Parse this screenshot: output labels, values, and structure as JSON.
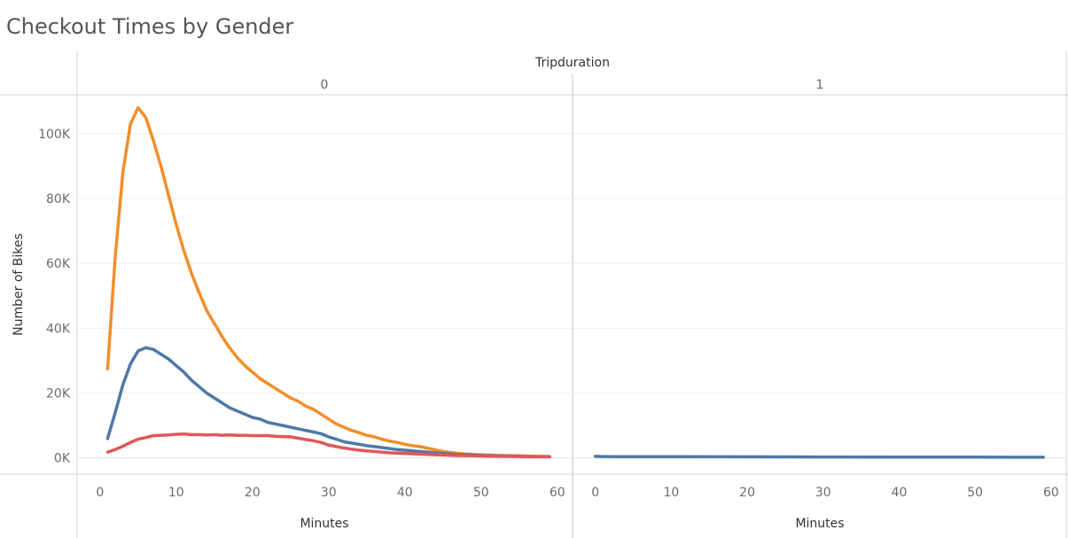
{
  "chart_data": {
    "type": "line",
    "title": "Checkout Times by Gender",
    "column_header": "Tripduration",
    "panes": [
      "0",
      "1"
    ],
    "xlabel": "Minutes",
    "ylabel": "Number of Bikes",
    "x_ticks": [
      "0",
      "10",
      "20",
      "30",
      "40",
      "50",
      "60"
    ],
    "y_ticks": [
      "0K",
      "20K",
      "40K",
      "60K",
      "80K",
      "100K"
    ],
    "xlim": [
      -3,
      62
    ],
    "ylim": [
      -5000,
      112000
    ],
    "grid": true,
    "series": [
      {
        "color": "#f28e2b",
        "pane0": [
          [
            1,
            27500
          ],
          [
            2,
            62000
          ],
          [
            3,
            88000
          ],
          [
            4,
            103000
          ],
          [
            5,
            108000
          ],
          [
            6,
            105000
          ],
          [
            7,
            98000
          ],
          [
            8,
            90000
          ],
          [
            9,
            81000
          ],
          [
            10,
            72000
          ],
          [
            11,
            64000
          ],
          [
            12,
            57000
          ],
          [
            13,
            51000
          ],
          [
            14,
            45500
          ],
          [
            15,
            41500
          ],
          [
            16,
            37500
          ],
          [
            17,
            34000
          ],
          [
            18,
            31000
          ],
          [
            19,
            28500
          ],
          [
            20,
            26500
          ],
          [
            21,
            24500
          ],
          [
            22,
            23000
          ],
          [
            23,
            21500
          ],
          [
            24,
            20000
          ],
          [
            25,
            18500
          ],
          [
            26,
            17500
          ],
          [
            27,
            16000
          ],
          [
            28,
            15000
          ],
          [
            29,
            13500
          ],
          [
            30,
            12000
          ],
          [
            31,
            10500
          ],
          [
            32,
            9500
          ],
          [
            33,
            8500
          ],
          [
            34,
            7800
          ],
          [
            35,
            7000
          ],
          [
            36,
            6500
          ],
          [
            37,
            5800
          ],
          [
            38,
            5200
          ],
          [
            39,
            4800
          ],
          [
            40,
            4200
          ],
          [
            41,
            3800
          ],
          [
            42,
            3500
          ],
          [
            43,
            3000
          ],
          [
            44,
            2500
          ],
          [
            45,
            2000
          ],
          [
            46,
            1700
          ],
          [
            47,
            1400
          ],
          [
            48,
            1200
          ],
          [
            49,
            1100
          ],
          [
            50,
            1000
          ],
          [
            51,
            900
          ],
          [
            52,
            800
          ],
          [
            53,
            750
          ],
          [
            54,
            700
          ],
          [
            55,
            650
          ],
          [
            56,
            600
          ],
          [
            57,
            550
          ],
          [
            58,
            500
          ],
          [
            59,
            450
          ]
        ],
        "pane1": []
      },
      {
        "color": "#4e79a7",
        "pane0": [
          [
            1,
            6000
          ],
          [
            2,
            14000
          ],
          [
            3,
            22500
          ],
          [
            4,
            29000
          ],
          [
            5,
            33000
          ],
          [
            6,
            34000
          ],
          [
            7,
            33500
          ],
          [
            8,
            32000
          ],
          [
            9,
            30500
          ],
          [
            10,
            28500
          ],
          [
            11,
            26500
          ],
          [
            12,
            24000
          ],
          [
            13,
            22000
          ],
          [
            14,
            20000
          ],
          [
            15,
            18500
          ],
          [
            16,
            17000
          ],
          [
            17,
            15500
          ],
          [
            18,
            14500
          ],
          [
            19,
            13500
          ],
          [
            20,
            12500
          ],
          [
            21,
            12000
          ],
          [
            22,
            11000
          ],
          [
            23,
            10500
          ],
          [
            24,
            10000
          ],
          [
            25,
            9500
          ],
          [
            26,
            9000
          ],
          [
            27,
            8500
          ],
          [
            28,
            8000
          ],
          [
            29,
            7500
          ],
          [
            30,
            6500
          ],
          [
            31,
            5800
          ],
          [
            32,
            5000
          ],
          [
            33,
            4600
          ],
          [
            34,
            4200
          ],
          [
            35,
            3800
          ],
          [
            36,
            3500
          ],
          [
            37,
            3200
          ],
          [
            38,
            2900
          ],
          [
            39,
            2600
          ],
          [
            40,
            2400
          ],
          [
            41,
            2200
          ],
          [
            42,
            2000
          ],
          [
            43,
            1800
          ],
          [
            44,
            1600
          ],
          [
            45,
            1400
          ],
          [
            46,
            1200
          ],
          [
            47,
            1100
          ],
          [
            48,
            1000
          ],
          [
            49,
            900
          ],
          [
            50,
            800
          ],
          [
            51,
            700
          ],
          [
            52,
            650
          ],
          [
            53,
            600
          ],
          [
            54,
            550
          ],
          [
            55,
            500
          ],
          [
            56,
            450
          ],
          [
            57,
            420
          ],
          [
            58,
            400
          ],
          [
            59,
            380
          ]
        ],
        "pane1": [
          [
            0,
            500
          ],
          [
            1,
            450
          ],
          [
            3,
            400
          ],
          [
            10,
            380
          ],
          [
            20,
            350
          ],
          [
            30,
            300
          ],
          [
            40,
            270
          ],
          [
            50,
            250
          ],
          [
            59,
            230
          ]
        ]
      },
      {
        "color": "#e15759",
        "pane0": [
          [
            1,
            1800
          ],
          [
            2,
            2600
          ],
          [
            3,
            3600
          ],
          [
            4,
            4800
          ],
          [
            5,
            5800
          ],
          [
            6,
            6300
          ],
          [
            7,
            6900
          ],
          [
            8,
            7000
          ],
          [
            9,
            7100
          ],
          [
            10,
            7300
          ],
          [
            11,
            7400
          ],
          [
            12,
            7200
          ],
          [
            13,
            7200
          ],
          [
            14,
            7100
          ],
          [
            15,
            7200
          ],
          [
            16,
            7000
          ],
          [
            17,
            7100
          ],
          [
            18,
            7000
          ],
          [
            19,
            7000
          ],
          [
            20,
            6900
          ],
          [
            21,
            6900
          ],
          [
            22,
            6900
          ],
          [
            23,
            6700
          ],
          [
            24,
            6600
          ],
          [
            25,
            6500
          ],
          [
            26,
            6100
          ],
          [
            27,
            5700
          ],
          [
            28,
            5300
          ],
          [
            29,
            4800
          ],
          [
            30,
            4000
          ],
          [
            31,
            3500
          ],
          [
            32,
            3100
          ],
          [
            33,
            2700
          ],
          [
            34,
            2400
          ],
          [
            35,
            2200
          ],
          [
            36,
            2000
          ],
          [
            37,
            1800
          ],
          [
            38,
            1600
          ],
          [
            39,
            1500
          ],
          [
            40,
            1400
          ],
          [
            41,
            1300
          ],
          [
            42,
            1200
          ],
          [
            43,
            1100
          ],
          [
            44,
            1000
          ],
          [
            45,
            900
          ],
          [
            46,
            800
          ],
          [
            47,
            750
          ],
          [
            48,
            700
          ],
          [
            49,
            650
          ],
          [
            50,
            600
          ],
          [
            51,
            560
          ],
          [
            52,
            520
          ],
          [
            53,
            490
          ],
          [
            54,
            460
          ],
          [
            55,
            430
          ],
          [
            56,
            400
          ],
          [
            57,
            380
          ],
          [
            58,
            360
          ],
          [
            59,
            340
          ]
        ],
        "pane1": []
      }
    ]
  }
}
